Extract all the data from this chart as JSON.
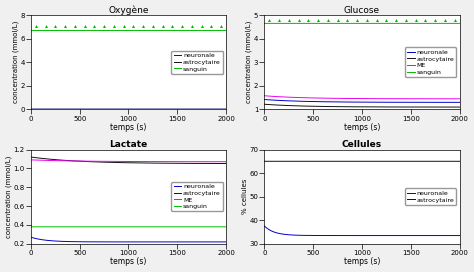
{
  "title_oxygen": "Oxygène",
  "title_glucose": "Glucose",
  "title_lactate": "Lactate",
  "title_cellules": "Cellules",
  "xlabel": "temps (s)",
  "ylabel_conc": "concentration (mmol/L)",
  "ylabel_cells": "% cellules",
  "t_end": 2000,
  "oxygen": {
    "neuronale": 0.02,
    "astrocytaire": 0.015,
    "sanguin_base": 6.7,
    "sanguin_spike": 7.05,
    "spike_interval": 100
  },
  "glucose": {
    "neuronale": 1.3,
    "astrocytaire": 1.1,
    "ME": 1.45,
    "sanguin_base": 4.65,
    "sanguin_spike": 4.8,
    "spike_interval": 100
  },
  "lactate": {
    "neuronale": 0.22,
    "astrocytaire": 1.05,
    "ME": 1.07,
    "sanguin": 0.38
  },
  "cellules": {
    "neuronale_start": 37.5,
    "neuronale_end": 33.5,
    "astrocytaire": 65.0
  },
  "colors": {
    "neuronale": "#0000CD",
    "astrocytaire": "#111111",
    "ME": "#EE00EE",
    "sanguin": "#00BB00"
  },
  "bg_color": "#F0F0F0",
  "axes_bg": "#FFFFFF",
  "ylim_oxygen": [
    0,
    8
  ],
  "yticks_oxygen": [
    0,
    2,
    4,
    6,
    8
  ],
  "ylim_glucose": [
    1.0,
    5.0
  ],
  "yticks_glucose": [
    1,
    2,
    3,
    4,
    5
  ],
  "ylim_lactate": [
    0.2,
    1.2
  ],
  "yticks_lactate": [
    0.2,
    0.4,
    0.6,
    0.8,
    1.0,
    1.2
  ],
  "ylim_cellules": [
    30,
    70
  ],
  "yticks_cellules": [
    30,
    40,
    50,
    60,
    70
  ],
  "xticks": [
    0,
    500,
    1000,
    1500,
    2000
  ]
}
